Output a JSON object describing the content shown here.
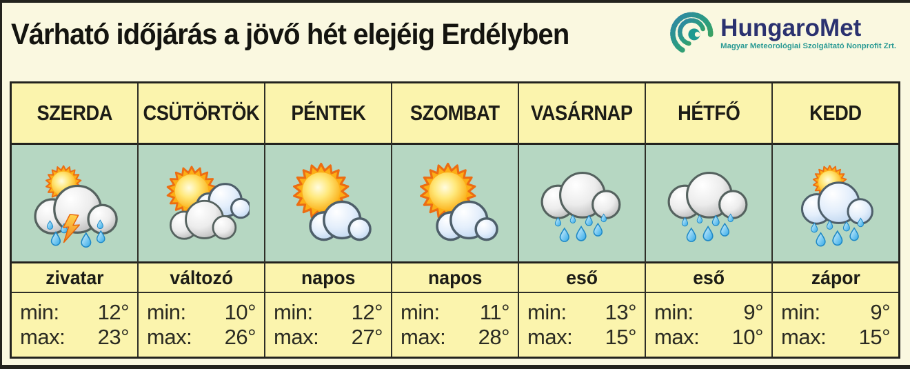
{
  "page": {
    "title": "Várható időjárás a jövő hét elejéig Erdélyben"
  },
  "logo": {
    "name": "HungaroMet",
    "tagline": "Magyar Meteorológiai Szolgáltató Nonprofit Zrt.",
    "icon": "swirl-spiral-icon",
    "name_color": "#2b3270",
    "tagline_color": "#2a9a94"
  },
  "labels": {
    "min": "min:",
    "max": "max:"
  },
  "colors": {
    "page_background": "#faf8e0",
    "cell_yellow": "#fbf4ad",
    "icon_row_green": "#b6d7c2",
    "border_dark": "#23231e"
  },
  "forecast": {
    "days": [
      {
        "day": "SZERDA",
        "condition": "zivatar",
        "icon": "thunderstorm-icon",
        "min_display": "12°",
        "max_display": "23°"
      },
      {
        "day": "CSÜTÖRTÖK",
        "condition": "változó",
        "icon": "sun-two-clouds-icon",
        "min_display": "10°",
        "max_display": "26°"
      },
      {
        "day": "PÉNTEK",
        "condition": "napos",
        "icon": "sun-small-cloud-icon",
        "min_display": "12°",
        "max_display": "27°"
      },
      {
        "day": "SZOMBAT",
        "condition": "napos",
        "icon": "sun-small-cloud-icon",
        "min_display": "11°",
        "max_display": "28°"
      },
      {
        "day": "VASÁRNAP",
        "condition": "eső",
        "icon": "rain-cloud-icon",
        "min_display": "13°",
        "max_display": "15°"
      },
      {
        "day": "HÉTFŐ",
        "condition": "eső",
        "icon": "rain-cloud-icon",
        "min_display": "9°",
        "max_display": "10°"
      },
      {
        "day": "KEDD",
        "condition": "zápor",
        "icon": "shower-sun-cloud-icon",
        "min_display": "9°",
        "max_display": "15°"
      }
    ]
  },
  "chart_data": {
    "type": "table",
    "title": "Várható időjárás a jövő hét elejéig Erdélyben",
    "source": "HungaroMet",
    "columns": [
      "SZERDA",
      "CSÜTÖRTÖK",
      "PÉNTEK",
      "SZOMBAT",
      "VASÁRNAP",
      "HÉTFŐ",
      "KEDD"
    ],
    "conditions": [
      "zivatar",
      "változó",
      "napos",
      "napos",
      "eső",
      "eső",
      "zápor"
    ],
    "series": [
      {
        "name": "min (°C)",
        "values": [
          12,
          10,
          12,
          11,
          13,
          9,
          9
        ]
      },
      {
        "name": "max (°C)",
        "values": [
          23,
          26,
          27,
          28,
          15,
          10,
          15
        ]
      }
    ]
  }
}
